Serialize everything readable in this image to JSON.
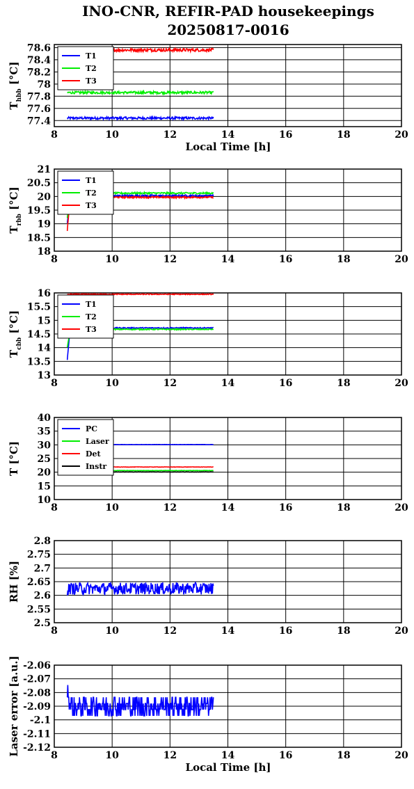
{
  "title_line1": "INO-CNR, REFIR-PAD housekeepings",
  "title_line2": "20250817-0016",
  "x_axis_label": "Local Time [h]",
  "chart_data": [
    {
      "type": "line",
      "ylabel": {
        "main": "T",
        "sub": "hbb",
        "unit": " [°C]"
      },
      "xlabel": "Local Time [h]",
      "xlim": [
        8,
        20
      ],
      "ylim": [
        77.3,
        78.65
      ],
      "xticks": [
        8,
        10,
        12,
        14,
        16,
        18,
        20
      ],
      "yticks": [
        77.4,
        77.6,
        77.8,
        78,
        78.2,
        78.4,
        78.6
      ],
      "ytick_labels": [
        "77.4",
        "77.6",
        "77.8",
        "78",
        "78.2",
        "78.4",
        "78.6"
      ],
      "grid": true,
      "legend": "top-left",
      "series": [
        {
          "name": "T1",
          "color": "#0000ff",
          "x_range": [
            8.45,
            13.5
          ],
          "start": 77.44,
          "level": 77.44,
          "noise": 0.02
        },
        {
          "name": "T2",
          "color": "#00ee00",
          "x_range": [
            8.45,
            13.5
          ],
          "start": 77.86,
          "level": 77.86,
          "noise": 0.02
        },
        {
          "name": "T3",
          "color": "#ff0000",
          "x_range": [
            8.45,
            13.5
          ],
          "start": 78.56,
          "level": 78.56,
          "noise": 0.025
        }
      ]
    },
    {
      "type": "line",
      "ylabel": {
        "main": "T",
        "sub": "rbb",
        "unit": " [°C]"
      },
      "xlabel": "",
      "xlim": [
        8,
        20
      ],
      "ylim": [
        18,
        21
      ],
      "xticks": [
        8,
        10,
        12,
        14,
        16,
        18,
        20
      ],
      "yticks": [
        18,
        18.5,
        19,
        19.5,
        20,
        20.5,
        21
      ],
      "ytick_labels": [
        "18",
        "18.5",
        "19",
        "19.5",
        "20",
        "20.5",
        "21"
      ],
      "grid": true,
      "legend": "top-left",
      "series": [
        {
          "name": "T1",
          "color": "#0000ff",
          "x_range": [
            8.45,
            13.5
          ],
          "start": 19.0,
          "level": 20.03,
          "noise": 0.03
        },
        {
          "name": "T2",
          "color": "#00ee00",
          "x_range": [
            8.45,
            13.5
          ],
          "start": 19.2,
          "level": 20.12,
          "noise": 0.03
        },
        {
          "name": "T3",
          "color": "#ff0000",
          "x_range": [
            8.45,
            13.5
          ],
          "start": 18.75,
          "level": 19.97,
          "noise": 0.03
        }
      ]
    },
    {
      "type": "line",
      "ylabel": {
        "main": "T",
        "sub": "cbb",
        "unit": " [°C]"
      },
      "xlabel": "",
      "xlim": [
        8,
        20
      ],
      "ylim": [
        13,
        16
      ],
      "xticks": [
        8,
        10,
        12,
        14,
        16,
        18,
        20
      ],
      "yticks": [
        13,
        13.5,
        14,
        14.5,
        15,
        15.5,
        16
      ],
      "ytick_labels": [
        "13",
        "13.5",
        "14",
        "14.5",
        "15",
        "15.5",
        "16"
      ],
      "grid": true,
      "legend": "top-left",
      "series": [
        {
          "name": "T1",
          "color": "#0000ff",
          "x_range": [
            8.45,
            13.5
          ],
          "start": 13.55,
          "level": 14.72,
          "noise": 0.02
        },
        {
          "name": "T2",
          "color": "#00ee00",
          "x_range": [
            8.45,
            13.5
          ],
          "start": 14.0,
          "level": 14.67,
          "noise": 0.02
        },
        {
          "name": "T3",
          "color": "#ff0000",
          "x_range": [
            8.45,
            13.5
          ],
          "start": 15.93,
          "level": 15.95,
          "noise": 0.015
        }
      ]
    },
    {
      "type": "line",
      "ylabel": {
        "main": "T [°C]",
        "sub": "",
        "unit": ""
      },
      "xlabel": "",
      "xlim": [
        8,
        20
      ],
      "ylim": [
        10,
        40
      ],
      "xticks": [
        8,
        10,
        12,
        14,
        16,
        18,
        20
      ],
      "yticks": [
        10,
        15,
        20,
        25,
        30,
        35,
        40
      ],
      "ytick_labels": [
        "10",
        "15",
        "20",
        "25",
        "30",
        "35",
        "40"
      ],
      "grid": true,
      "legend": "top-left",
      "series": [
        {
          "name": "PC",
          "color": "#0000ff",
          "x_range": [
            8.45,
            13.5
          ],
          "start": 30.0,
          "level": 30.1,
          "noise": 0.05
        },
        {
          "name": "Laser",
          "color": "#00ee00",
          "x_range": [
            8.45,
            13.5
          ],
          "start": 20.3,
          "level": 20.6,
          "noise": 0.05
        },
        {
          "name": "Det",
          "color": "#ff0000",
          "x_range": [
            8.45,
            13.5
          ],
          "start": 21.8,
          "level": 21.9,
          "noise": 0.06
        },
        {
          "name": "Instr",
          "color": "#000000",
          "x_range": [
            8.45,
            13.5
          ],
          "start": 20.0,
          "level": 20.1,
          "noise": 0.05
        }
      ]
    },
    {
      "type": "line",
      "ylabel": {
        "main": "RH [%]",
        "sub": "",
        "unit": ""
      },
      "xlabel": "",
      "xlim": [
        8,
        20
      ],
      "ylim": [
        2.5,
        2.8
      ],
      "xticks": [
        8,
        10,
        12,
        14,
        16,
        18,
        20
      ],
      "yticks": [
        2.5,
        2.55,
        2.6,
        2.65,
        2.7,
        2.75,
        2.8
      ],
      "ytick_labels": [
        "2.5",
        "2.55",
        "2.6",
        "2.65",
        "2.7",
        "2.75",
        "2.8"
      ],
      "grid": true,
      "legend": "none",
      "series": [
        {
          "color": "#0000ff",
          "x_range": [
            8.45,
            13.5
          ],
          "start": 2.62,
          "level": 2.625,
          "noise": 0.022
        }
      ]
    },
    {
      "type": "line",
      "ylabel": {
        "main": "Laser error [a.u.]",
        "sub": "",
        "unit": ""
      },
      "xlabel": "Local Time [h]",
      "xlim": [
        8,
        20
      ],
      "ylim": [
        -2.12,
        -2.06
      ],
      "xticks": [
        8,
        10,
        12,
        14,
        16,
        18,
        20
      ],
      "yticks": [
        -2.12,
        -2.11,
        -2.1,
        -2.09,
        -2.08,
        -2.07,
        -2.06
      ],
      "ytick_labels": [
        "-2.12",
        "-2.11",
        "-2.1",
        "-2.09",
        "-2.08",
        "-2.07",
        "-2.06"
      ],
      "grid": true,
      "legend": "none",
      "series": [
        {
          "color": "#0000ff",
          "x_range": [
            8.45,
            13.5
          ],
          "start": -2.076,
          "level": -2.09,
          "noise": 0.008,
          "quantize": 0.0045
        }
      ]
    }
  ]
}
